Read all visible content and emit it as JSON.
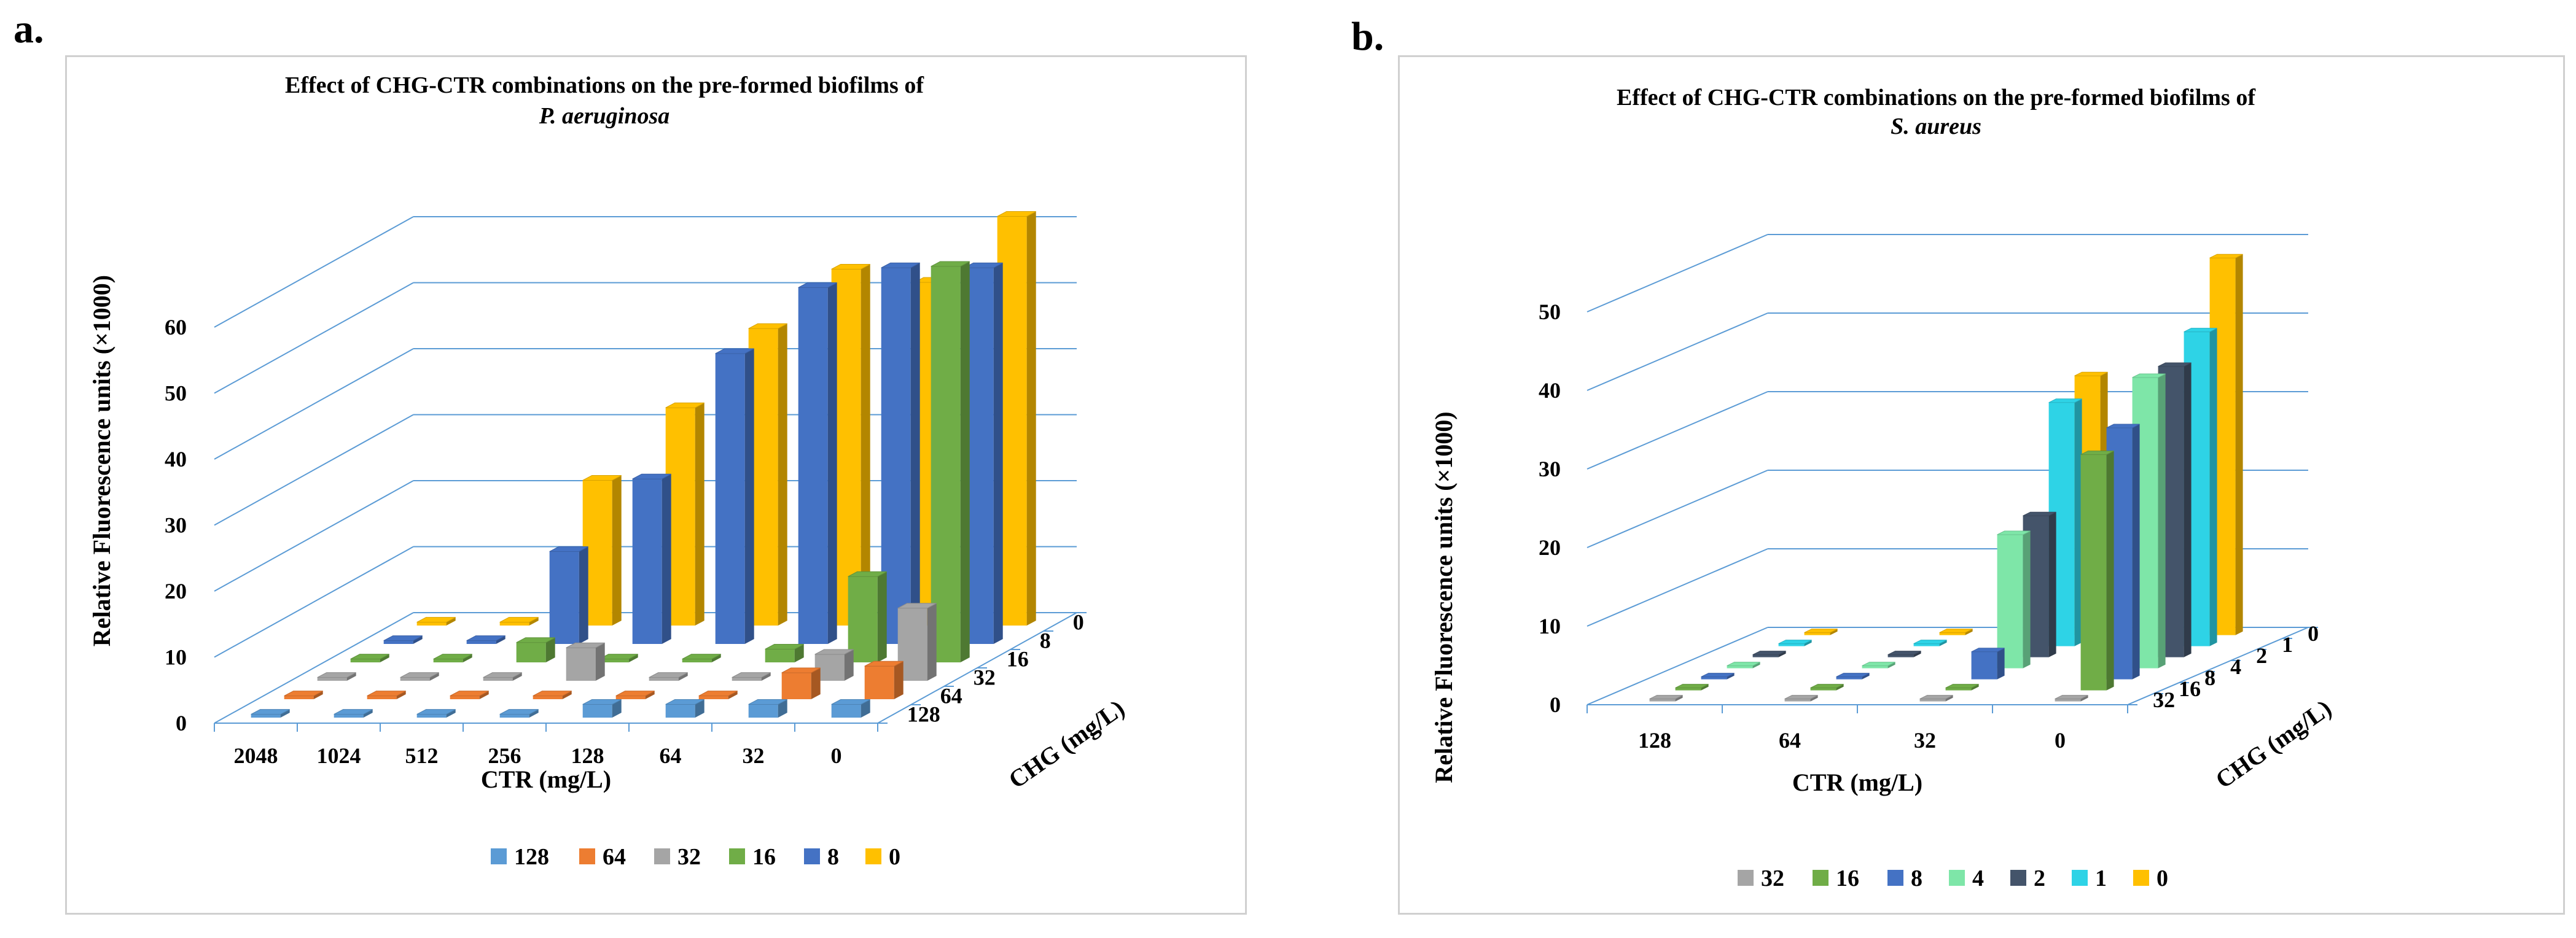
{
  "panels": {
    "a": {
      "letter": "a."
    },
    "b": {
      "letter": "b."
    }
  },
  "chart_data": [
    {
      "id": "a",
      "type": "bar",
      "subtype": "3d-bar",
      "title": "Effect of CHG-CTR combinations on the pre-formed biofilms of",
      "subtitle": "P. aeruginosa",
      "xlabel": "CTR (mg/L)",
      "ylabel": "Relative Fluorescence units (×1000)",
      "zlabel": "CHG (mg/L)",
      "categories": [
        "2048",
        "1024",
        "512",
        "256",
        "128",
        "64",
        "32",
        "0"
      ],
      "ylim": [
        0,
        60
      ],
      "yticks": [
        "0",
        "10",
        "20",
        "30",
        "40",
        "50",
        "60"
      ],
      "grid": true,
      "legend_position": "bottom",
      "series": [
        {
          "name": "128",
          "color": "#5b9bd5",
          "values": [
            0.5,
            0.5,
            0.5,
            0.5,
            2,
            2,
            2,
            2
          ]
        },
        {
          "name": "64",
          "color": "#ed7d31",
          "values": [
            0.5,
            0.5,
            0.5,
            0.5,
            0.5,
            0.5,
            4,
            5
          ]
        },
        {
          "name": "32",
          "color": "#a5a5a5",
          "values": [
            0.5,
            0.5,
            0.5,
            5,
            0.5,
            0.5,
            4,
            11
          ]
        },
        {
          "name": "16",
          "color": "#70ad47",
          "values": [
            0.5,
            0.5,
            3,
            0.5,
            0.5,
            2,
            13,
            60
          ]
        },
        {
          "name": "8",
          "color": "#4472c4",
          "values": [
            0.5,
            0.5,
            14,
            25,
            44,
            54,
            57,
            57
          ]
        },
        {
          "name": "0",
          "color": "#ffc000",
          "values": [
            0.5,
            0.5,
            22,
            33,
            45,
            54,
            52,
            62
          ]
        }
      ]
    },
    {
      "id": "b",
      "type": "bar",
      "subtype": "3d-bar",
      "title": "Effect of CHG-CTR combinations on the pre-formed biofilms of",
      "subtitle": "S. aureus",
      "xlabel": "CTR (mg/L)",
      "ylabel": "Relative Fluorescence units (×1000)",
      "zlabel": "CHG (mg/L)",
      "categories": [
        "128",
        "64",
        "32",
        "0"
      ],
      "ylim": [
        0,
        50
      ],
      "yticks": [
        "0",
        "10",
        "20",
        "30",
        "40",
        "50"
      ],
      "grid": true,
      "legend_position": "bottom",
      "series": [
        {
          "name": "32",
          "color": "#a5a5a5",
          "values": [
            0.3,
            0.3,
            0.3,
            0.3
          ]
        },
        {
          "name": "16",
          "color": "#70ad47",
          "values": [
            0.3,
            0.3,
            0.3,
            30
          ]
        },
        {
          "name": "8",
          "color": "#4472c4",
          "values": [
            0.3,
            0.3,
            3.5,
            32
          ]
        },
        {
          "name": "4",
          "color": "#7ee6a8",
          "values": [
            0.3,
            0.3,
            17,
            37
          ]
        },
        {
          "name": "2",
          "color": "#44546a",
          "values": [
            0.3,
            0.3,
            18,
            37
          ]
        },
        {
          "name": "1",
          "color": "#2ed3e6",
          "values": [
            0.3,
            0.3,
            31,
            40
          ]
        },
        {
          "name": "0",
          "color": "#ffc000",
          "values": [
            0.3,
            0.3,
            33,
            48
          ]
        }
      ]
    }
  ]
}
